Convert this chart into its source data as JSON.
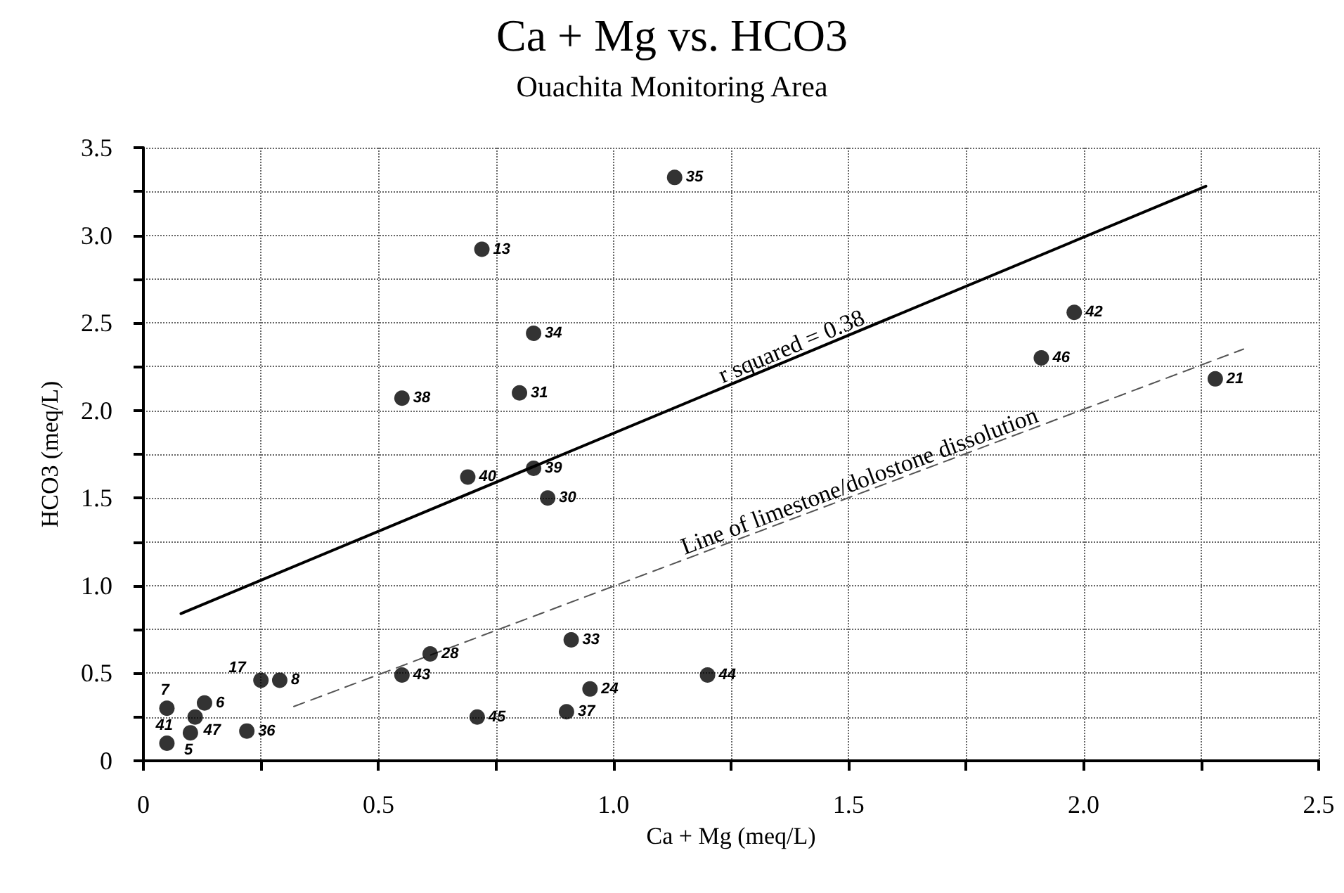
{
  "chart_data": {
    "type": "scatter",
    "title": "Ca + Mg vs. HCO3",
    "subtitle": "Ouachita Monitoring Area",
    "xlabel": "Ca + Mg (meq/L)",
    "ylabel": "HCO3 (meq/L)",
    "xlim": [
      0,
      2.5
    ],
    "xticks": [
      {
        "value": 0,
        "label": "0"
      },
      {
        "value": 0.25,
        "label": null
      },
      {
        "value": 0.5,
        "label": "0.5"
      },
      {
        "value": 0.75,
        "label": null
      },
      {
        "value": 1,
        "label": "1.0"
      },
      {
        "value": 1.25,
        "label": null
      },
      {
        "value": 1.5,
        "label": "1.5"
      },
      {
        "value": 1.75,
        "label": null
      },
      {
        "value": 2,
        "label": "2.0"
      },
      {
        "value": 2.25,
        "label": null
      },
      {
        "value": 2.5,
        "label": "2.5"
      }
    ],
    "ylim": [
      0,
      3.5
    ],
    "yticks": [
      {
        "value": 0,
        "label": "0"
      },
      {
        "value": 0.25,
        "label": null
      },
      {
        "value": 0.5,
        "label": "0.5"
      },
      {
        "value": 0.75,
        "label": null
      },
      {
        "value": 1,
        "label": "1.0"
      },
      {
        "value": 1.25,
        "label": null
      },
      {
        "value": 1.5,
        "label": "1.5"
      },
      {
        "value": 1.75,
        "label": null
      },
      {
        "value": 2,
        "label": "2.0"
      },
      {
        "value": 2.25,
        "label": null
      },
      {
        "value": 2.5,
        "label": "2.5"
      },
      {
        "value": 2.75,
        "label": null
      },
      {
        "value": 3,
        "label": "3.0"
      },
      {
        "value": 3.25,
        "label": null
      },
      {
        "value": 3.5,
        "label": "3.5"
      }
    ],
    "grid": true,
    "marker": "circle",
    "series": [
      {
        "color": "#000000",
        "x": [
          1.13,
          0.72,
          0.83,
          0.55,
          0.8,
          0.69,
          0.83,
          0.86,
          1.98,
          1.91,
          2.28,
          0.91,
          0.61,
          0.55,
          1.2,
          0.95,
          0.9,
          0.71,
          0.25,
          0.29,
          0.05,
          0.13,
          0.11,
          0.1,
          0.05,
          0.22
        ],
        "values": [
          3.33,
          2.92,
          2.44,
          2.07,
          2.1,
          1.62,
          1.67,
          1.5,
          2.56,
          2.3,
          2.18,
          0.69,
          0.61,
          0.49,
          0.49,
          0.41,
          0.28,
          0.25,
          0.46,
          0.46,
          0.3,
          0.33,
          0.25,
          0.16,
          0.1,
          0.17
        ]
      },
      {
        "type": "line",
        "color": "#000000",
        "marker": "none",
        "line_style": "solid",
        "x": [
          0.08,
          2.26
        ],
        "values": [
          0.84,
          3.28
        ]
      },
      {
        "type": "line",
        "color": "#555555",
        "marker": "none",
        "line_style": "dashed",
        "x": [
          0.32,
          2.34
        ],
        "values": [
          0.31,
          2.35
        ]
      }
    ],
    "annotations": [
      "r squared = 0.38",
      "Line of limestone/dolostone dissolution",
      {
        "text": "35",
        "x": 1.13,
        "y": 3.33
      },
      {
        "text": "13",
        "x": 0.72,
        "y": 2.92
      },
      {
        "text": "34",
        "x": 0.83,
        "y": 2.44
      },
      {
        "text": "38",
        "x": 0.55,
        "y": 2.07
      },
      {
        "text": "31",
        "x": 0.8,
        "y": 2.1
      },
      {
        "text": "40",
        "x": 0.69,
        "y": 1.62
      },
      {
        "text": "39",
        "x": 0.83,
        "y": 1.67
      },
      {
        "text": "30",
        "x": 0.86,
        "y": 1.5
      },
      {
        "text": "42",
        "x": 1.98,
        "y": 2.56
      },
      {
        "text": "46",
        "x": 1.91,
        "y": 2.3
      },
      {
        "text": "21",
        "x": 2.28,
        "y": 2.18
      },
      {
        "text": "33",
        "x": 0.91,
        "y": 0.69
      },
      {
        "text": "28",
        "x": 0.61,
        "y": 0.61
      },
      {
        "text": "43",
        "x": 0.55,
        "y": 0.49
      },
      {
        "text": "44",
        "x": 1.2,
        "y": 0.49
      },
      {
        "text": "24",
        "x": 0.95,
        "y": 0.41
      },
      {
        "text": "37",
        "x": 0.9,
        "y": 0.28
      },
      {
        "text": "45",
        "x": 0.71,
        "y": 0.25
      },
      {
        "text": "17",
        "x": 0.25,
        "y": 0.46
      },
      {
        "text": "8",
        "x": 0.29,
        "y": 0.46
      },
      {
        "text": "7",
        "x": 0.05,
        "y": 0.3
      },
      {
        "text": "6",
        "x": 0.13,
        "y": 0.33
      },
      {
        "text": "47",
        "x": 0.11,
        "y": 0.25
      },
      {
        "text": "5",
        "x": 0.1,
        "y": 0.16
      },
      {
        "text": "41",
        "x": 0.05,
        "y": 0.1
      },
      {
        "text": "36",
        "x": 0.22,
        "y": 0.17
      }
    ]
  }
}
